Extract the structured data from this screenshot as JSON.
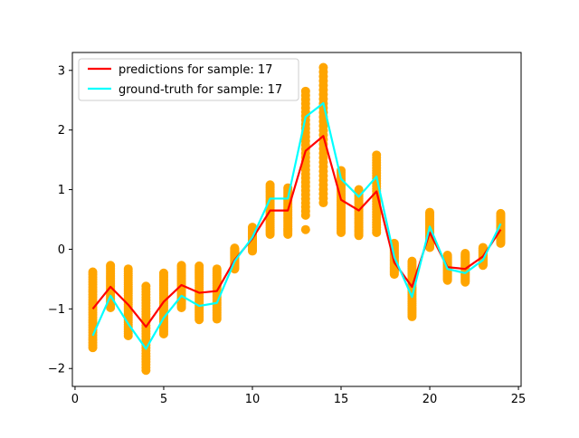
{
  "chart_data": {
    "type": "line",
    "title": "",
    "xlabel": "",
    "ylabel": "",
    "xlim": [
      -0.15,
      25.15
    ],
    "ylim": [
      -2.3,
      3.3
    ],
    "x_ticks": [
      0,
      5,
      10,
      15,
      20,
      25
    ],
    "y_ticks": [
      -2,
      -1,
      0,
      1,
      2,
      3
    ],
    "x_tick_labels": [
      "0",
      "5",
      "10",
      "15",
      "20",
      "25"
    ],
    "y_tick_labels": [
      "−2",
      "−1",
      "0",
      "1",
      "2",
      "3"
    ],
    "grid": false,
    "legend_position": "top-left",
    "x": [
      1,
      2,
      3,
      4,
      5,
      6,
      7,
      8,
      9,
      10,
      11,
      12,
      13,
      14,
      15,
      16,
      17,
      18,
      19,
      20,
      21,
      22,
      23,
      24
    ],
    "series": [
      {
        "name": "predictions for sample: 17",
        "color": "#ff0000",
        "values": [
          -1.0,
          -0.63,
          -0.93,
          -1.3,
          -0.88,
          -0.6,
          -0.73,
          -0.7,
          -0.18,
          0.18,
          0.65,
          0.65,
          1.65,
          1.9,
          0.83,
          0.65,
          0.97,
          -0.22,
          -0.63,
          0.28,
          -0.3,
          -0.33,
          -0.12,
          0.33
        ]
      },
      {
        "name": "ground-truth for sample: 17",
        "color": "#00ffff",
        "values": [
          -1.45,
          -0.78,
          -1.25,
          -1.67,
          -1.15,
          -0.78,
          -0.95,
          -0.9,
          -0.2,
          0.2,
          0.85,
          0.85,
          2.22,
          2.45,
          1.18,
          0.88,
          1.22,
          -0.13,
          -0.8,
          0.38,
          -0.33,
          -0.4,
          -0.18,
          0.43
        ]
      }
    ],
    "scatter": {
      "color": "#ffa500",
      "ranges": [
        [
          -1.65,
          -0.38
        ],
        [
          -0.98,
          -0.27
        ],
        [
          -1.45,
          -0.33
        ],
        [
          -2.03,
          -0.62
        ],
        [
          -1.42,
          -0.4
        ],
        [
          -0.98,
          -0.27
        ],
        [
          -1.18,
          -0.28
        ],
        [
          -1.17,
          -0.33
        ],
        [
          -0.33,
          0.02
        ],
        [
          -0.03,
          0.37
        ],
        [
          0.25,
          1.08
        ],
        [
          0.25,
          1.03
        ],
        [
          0.57,
          2.65
        ],
        [
          0.78,
          3.05
        ],
        [
          0.28,
          1.32
        ],
        [
          0.23,
          1.0
        ],
        [
          0.28,
          1.58
        ],
        [
          -0.42,
          0.1
        ],
        [
          -1.13,
          -0.2
        ],
        [
          0.03,
          0.62
        ],
        [
          -0.52,
          -0.1
        ],
        [
          -0.55,
          -0.07
        ],
        [
          -0.27,
          0.03
        ],
        [
          0.1,
          0.6
        ]
      ],
      "extra_points": [
        [
          13,
          0.33
        ]
      ]
    }
  }
}
